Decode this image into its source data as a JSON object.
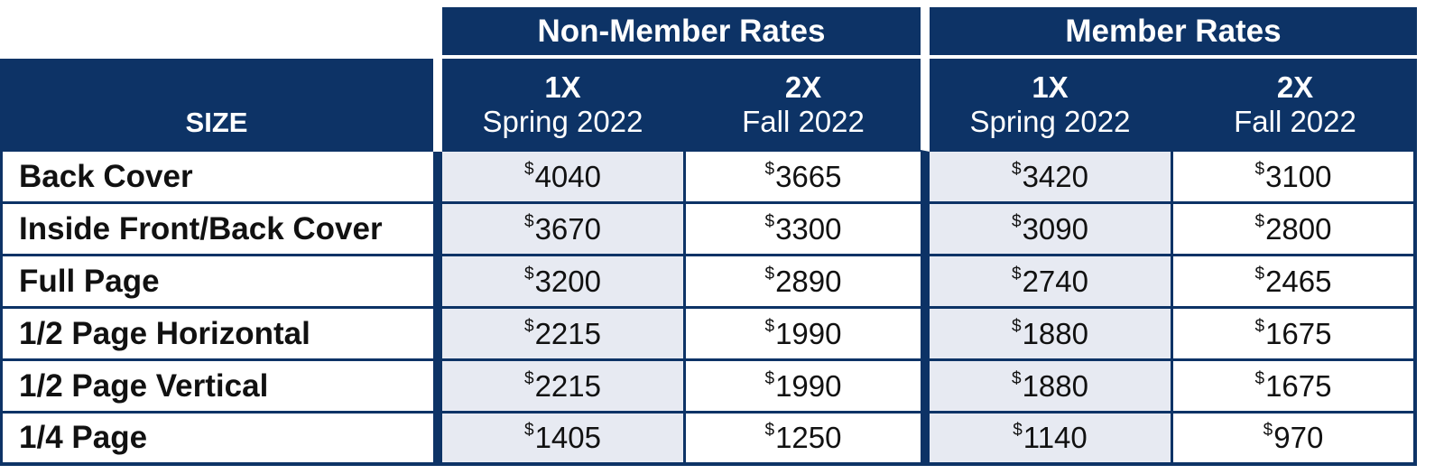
{
  "table": {
    "group_headers": [
      "Non-Member Rates",
      "Member Rates"
    ],
    "size_header": "SIZE",
    "columns": [
      {
        "frequency": "1X",
        "season": "Spring 2022"
      },
      {
        "frequency": "2X",
        "season": "Fall 2022"
      },
      {
        "frequency": "1X",
        "season": "Spring 2022"
      },
      {
        "frequency": "2X",
        "season": "Fall 2022"
      }
    ],
    "currency_symbol": "$",
    "rows": [
      {
        "size": "Back Cover",
        "prices": [
          "4040",
          "3665",
          "3420",
          "3100"
        ]
      },
      {
        "size": "Inside Front/Back Cover",
        "prices": [
          "3670",
          "3300",
          "3090",
          "2800"
        ]
      },
      {
        "size": "Full Page",
        "prices": [
          "3200",
          "2890",
          "2740",
          "2465"
        ]
      },
      {
        "size": "1/2 Page Horizontal",
        "prices": [
          "2215",
          "1990",
          "1880",
          "1675"
        ]
      },
      {
        "size": "1/2 Page Vertical",
        "prices": [
          "2215",
          "1990",
          "1880",
          "1675"
        ]
      },
      {
        "size": "1/4 Page",
        "prices": [
          "1405",
          "1250",
          "1140",
          "970"
        ]
      }
    ]
  },
  "colors": {
    "header_navy": "#0d3366",
    "shaded_cell": "#e7eaf2",
    "text": "#111111"
  }
}
